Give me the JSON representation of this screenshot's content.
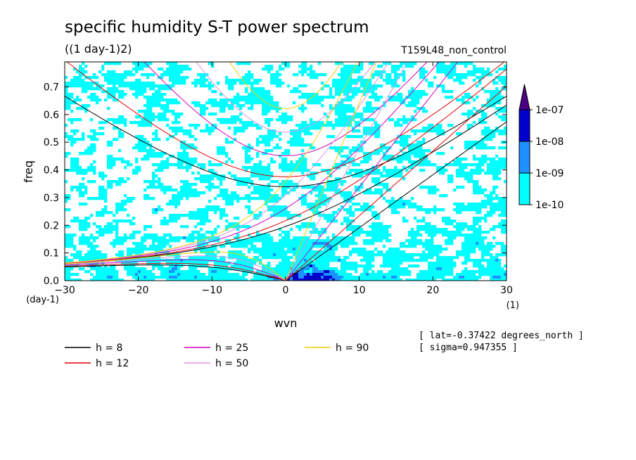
{
  "chart_data": {
    "type": "heatmap",
    "title": "specific humidity S-T power spectrum",
    "subtitle": "((1 day-1)2)",
    "run_label": "T159L48_non_control",
    "xlabel": "wvn",
    "ylabel": "freq",
    "x_unit": "(1)",
    "y_unit": "(day-1)",
    "xlim": [
      -30,
      30
    ],
    "ylim": [
      0,
      0.79
    ],
    "x_ticks": [
      "-30",
      "-20",
      "-10",
      "0",
      "10",
      "20",
      "30"
    ],
    "y_ticks": [
      "0.0",
      "0.1",
      "0.2",
      "0.3",
      "0.4",
      "0.5",
      "0.6",
      "0.7"
    ],
    "colorbar": {
      "levels": [
        "1e-10",
        "1e-09",
        "1e-08",
        "1e-07"
      ],
      "colors": [
        "#00ffff",
        "#1e90ff",
        "#0000cd",
        "#4b0082"
      ]
    },
    "dispersion_curves": [
      {
        "label": "h =  8",
        "h": 8,
        "color": "#000000"
      },
      {
        "label": "h = 12",
        "h": 12,
        "color": "#e00000"
      },
      {
        "label": "h = 25",
        "h": 25,
        "color": "#d000c0"
      },
      {
        "label": "h = 50",
        "h": 50,
        "color": "#e090e0"
      },
      {
        "label": "h = 90",
        "h": 90,
        "color": "#f0d000"
      }
    ],
    "annotations": [
      "[ lat=-0.37422 degrees_north ]",
      "[ sigma=0.947355 ]"
    ]
  }
}
